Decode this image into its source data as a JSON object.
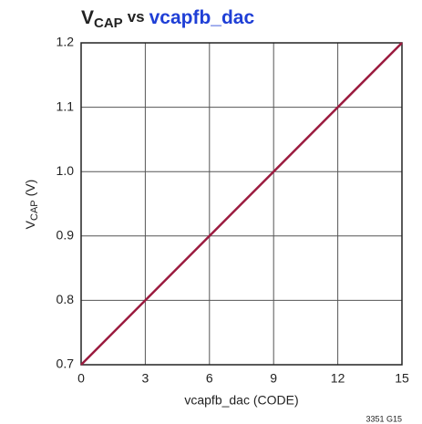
{
  "chart_data": {
    "type": "line",
    "title": {
      "main": "V",
      "subscript": "CAP",
      "joiner": "vs",
      "highlight": "vcapfb_dac"
    },
    "ylabel": {
      "main": "V",
      "subscript": "CAP",
      "unit": "(V)"
    },
    "xlabel": "vcapfb_dac (CODE)",
    "footnote": "3351 G15",
    "x": [
      0,
      3,
      6,
      9,
      12,
      15
    ],
    "series": [
      {
        "color": "#9b1b3f",
        "values": [
          0.7,
          0.8,
          0.9,
          {
            "value": 1,
            "label": "1.0"
          },
          1.1,
          1.2
        ]
      }
    ],
    "xlim": [
      0,
      15
    ],
    "xticks": [
      0,
      3,
      6,
      9,
      12,
      15
    ],
    "ylim": [
      0.7,
      1.2
    ],
    "yticks": [
      0.7,
      0.8,
      0.9,
      {
        "value": 1,
        "label": "1.0"
      },
      1.1,
      1.2
    ],
    "grid": true,
    "title_color": "#1f3fd6"
  }
}
